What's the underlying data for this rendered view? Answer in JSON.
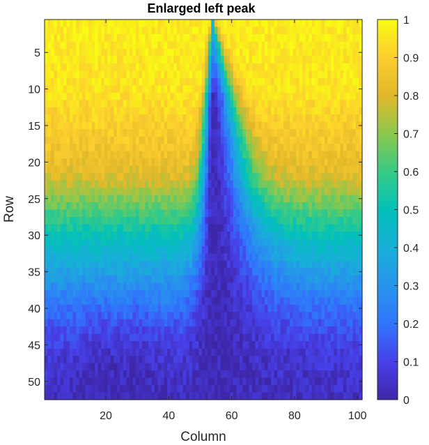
{
  "chart_data": {
    "type": "heatmap",
    "title": "Enlarged left peak",
    "xlabel": "Column",
    "ylabel": "Row",
    "rows": 52,
    "cols": 101,
    "xlim": [
      0.5,
      101.5
    ],
    "ylim": [
      0.5,
      52.5
    ],
    "x_ticks": [
      20,
      40,
      60,
      80,
      100
    ],
    "x_tick_labels": [
      "20",
      "40",
      "60",
      "80",
      "100"
    ],
    "y_ticks": [
      5,
      10,
      15,
      20,
      25,
      30,
      35,
      40,
      45,
      50
    ],
    "y_tick_labels": [
      "5",
      "10",
      "15",
      "20",
      "25",
      "30",
      "35",
      "40",
      "45",
      "50"
    ],
    "y_direction": "reverse",
    "colormap": "parula",
    "clim": [
      0,
      1
    ],
    "colorbar": {
      "ticks": [
        0,
        0.1,
        0.2,
        0.3,
        0.4,
        0.5,
        0.6,
        0.7,
        0.8,
        0.9,
        1
      ],
      "tick_labels": [
        "0",
        "0.1",
        "0.2",
        "0.3",
        "0.4",
        "0.5",
        "0.6",
        "0.7",
        "0.8",
        "0.9",
        "1"
      ]
    },
    "value_pattern": {
      "background_row_profile": [
        [
          1,
          0.97
        ],
        [
          10,
          0.95
        ],
        [
          18,
          0.86
        ],
        [
          22,
          0.8
        ],
        [
          26,
          0.65
        ],
        [
          30,
          0.5
        ],
        [
          34,
          0.38
        ],
        [
          38,
          0.25
        ],
        [
          42,
          0.15
        ],
        [
          46,
          0.08
        ],
        [
          52,
          0.04
        ]
      ],
      "peak_center_column": 54,
      "peak_start_row": 1,
      "peak_left_half_width_at_row_52": 8,
      "peak_right_half_width_at_row_52": 26,
      "side_valley_columns": [
        18,
        30
      ],
      "side_valley_start_row": 38
    }
  }
}
